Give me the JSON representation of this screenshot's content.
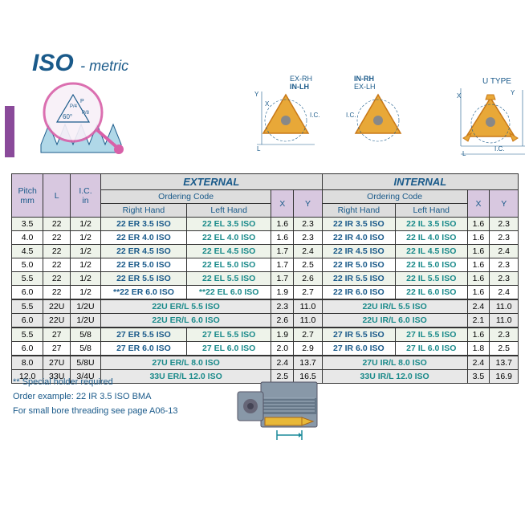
{
  "title": {
    "iso": "ISO",
    "metric": "- metric"
  },
  "diagram_labels": {
    "exrh": "EX-RH",
    "inlh": "IN-LH",
    "inrh": "IN-RH",
    "exlh": "EX-LH",
    "utype": "U TYPE",
    "x": "X",
    "y": "Y",
    "l": "L",
    "ic": "I.C."
  },
  "table": {
    "headers": {
      "pitch": "Pitch\nmm",
      "l": "L",
      "ic": "I.C.\nin",
      "external": "EXTERNAL",
      "internal": "INTERNAL",
      "ordering": "Ordering Code",
      "rh": "Right Hand",
      "lh": "Left Hand",
      "x": "X",
      "y": "Y"
    },
    "rows": [
      {
        "pitch": "3.5",
        "l": "22",
        "ic": "1/2",
        "erh": "22 ER 3.5 ISO",
        "elh": "22 EL 3.5 ISO",
        "ex": "1.6",
        "ey": "2.3",
        "irh": "22 IR 3.5 ISO",
        "ilh": "22 IL 3.5 ISO",
        "ix": "1.6",
        "iy": "2.3",
        "alt": true
      },
      {
        "pitch": "4.0",
        "l": "22",
        "ic": "1/2",
        "erh": "22 ER 4.0 ISO",
        "elh": "22 EL 4.0 ISO",
        "ex": "1.6",
        "ey": "2.3",
        "irh": "22 IR 4.0 ISO",
        "ilh": "22 IL 4.0 ISO",
        "ix": "1.6",
        "iy": "2.3"
      },
      {
        "pitch": "4.5",
        "l": "22",
        "ic": "1/2",
        "erh": "22 ER 4.5 ISO",
        "elh": "22 EL 4.5 ISO",
        "ex": "1.7",
        "ey": "2.4",
        "irh": "22 IR 4.5 ISO",
        "ilh": "22 IL 4.5 ISO",
        "ix": "1.6",
        "iy": "2.4",
        "alt": true
      },
      {
        "pitch": "5.0",
        "l": "22",
        "ic": "1/2",
        "erh": "22 ER 5.0 ISO",
        "elh": "22 EL 5.0 ISO",
        "ex": "1.7",
        "ey": "2.5",
        "irh": "22 IR 5.0 ISO",
        "ilh": "22 IL 5.0 ISO",
        "ix": "1.6",
        "iy": "2.3"
      },
      {
        "pitch": "5.5",
        "l": "22",
        "ic": "1/2",
        "erh": "22 ER 5.5 ISO",
        "elh": "22 EL 5.5 ISO",
        "ex": "1.7",
        "ey": "2.6",
        "irh": "22 IR 5.5 ISO",
        "ilh": "22 IL 5.5 ISO",
        "ix": "1.6",
        "iy": "2.3",
        "alt": true
      },
      {
        "pitch": "6.0",
        "l": "22",
        "ic": "1/2",
        "erh": "**22 ER 6.0 ISO",
        "elh": "**22 EL 6.0 ISO",
        "ex": "1.9",
        "ey": "2.7",
        "irh": "22 IR 6.0 ISO",
        "ilh": "22 IL 6.0 ISO",
        "ix": "1.6",
        "iy": "2.4"
      },
      {
        "pitch": "5.5",
        "l": "22U",
        "ic": "1/2U",
        "merged_e": "22U ER/L 5.5 ISO",
        "ex": "2.3",
        "ey": "11.0",
        "merged_i": "22U IR/L 5.5 ISO",
        "ix": "2.4",
        "iy": "11.0",
        "grey": true,
        "dtop": true
      },
      {
        "pitch": "6.0",
        "l": "22U",
        "ic": "1/2U",
        "merged_e": "22U ER/L 6.0 ISO",
        "ex": "2.6",
        "ey": "11.0",
        "merged_i": "22U IR/L 6.0 ISO",
        "ix": "2.1",
        "iy": "11.0",
        "grey": true
      },
      {
        "pitch": "5.5",
        "l": "27",
        "ic": "5/8",
        "erh": "27 ER 5.5 ISO",
        "elh": "27 EL 5.5 ISO",
        "ex": "1.9",
        "ey": "2.7",
        "irh": "27 IR 5.5 ISO",
        "ilh": "27 IL 5.5 ISO",
        "ix": "1.6",
        "iy": "2.3",
        "dtop": true,
        "alt": true
      },
      {
        "pitch": "6.0",
        "l": "27",
        "ic": "5/8",
        "erh": "27 ER 6.0 ISO",
        "elh": "27 EL 6.0 ISO",
        "ex": "2.0",
        "ey": "2.9",
        "irh": "27 IR 6.0 ISO",
        "ilh": "27 IL 6.0 ISO",
        "ix": "1.8",
        "iy": "2.5"
      },
      {
        "pitch": "8.0",
        "l": "27U",
        "ic": "5/8U",
        "merged_e": "27U ER/L  8.0 ISO",
        "ex": "2.4",
        "ey": "13.7",
        "merged_i": "27U IR/L  8.0 ISO",
        "ix": "2.4",
        "iy": "13.7",
        "grey": true,
        "dtop": true
      },
      {
        "pitch": "12.0",
        "l": "33U",
        "ic": "3/4U",
        "merged_e": "33U ER/L 12.0 ISO",
        "ex": "2.5",
        "ey": "16.5",
        "merged_i": "33U IR/L 12.0 ISO",
        "ix": "3.5",
        "iy": "16.9",
        "grey": true
      }
    ]
  },
  "footer": {
    "note1": "** Special holder required",
    "note2": "Order example: 22 IR 3.5 ISO BMA",
    "note3": "For small bore threading see page A06-13"
  },
  "colors": {
    "primary": "#1a5a8a",
    "teal": "#1a8a8a",
    "purple": "#8a4a9a",
    "hdr_purple": "#d8c8e0",
    "hdr_grey": "#ddd",
    "row_alt": "#eef3ea",
    "row_grey": "#e8e8e8",
    "insert_fill": "#e8a838",
    "insert_stroke": "#c87818"
  }
}
